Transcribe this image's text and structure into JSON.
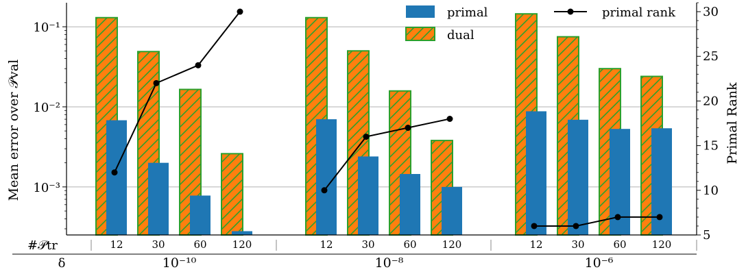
{
  "chart_data": {
    "type": "bar",
    "ylabel_left": "Mean error over 𝒫val",
    "ylabel_right": "Primal Rank",
    "y_left_scale": "log",
    "y_left_ticks": [
      "10⁻¹",
      "10⁻²",
      "10⁻³"
    ],
    "y_right_range": [
      5,
      31
    ],
    "y_right_ticks": [
      5,
      10,
      15,
      20,
      25,
      30
    ],
    "row_label_p": "#𝒫tr",
    "row_label_delta": "δ",
    "groups": [
      {
        "delta_label": "10⁻¹⁰",
        "categories": [
          "12",
          "30",
          "60",
          "120"
        ],
        "primal": [
          0.0068,
          0.002,
          0.00078,
          0.00028
        ],
        "dual": [
          0.13,
          0.049,
          0.0165,
          0.0026
        ],
        "primal_rank": [
          12,
          22,
          24,
          30
        ]
      },
      {
        "delta_label": "10⁻⁸",
        "categories": [
          "12",
          "30",
          "60",
          "120"
        ],
        "primal": [
          0.007,
          0.0024,
          0.00145,
          0.001
        ],
        "dual": [
          0.13,
          0.05,
          0.0158,
          0.0038
        ],
        "primal_rank": [
          10,
          16,
          17,
          18
        ]
      },
      {
        "delta_label": "10⁻⁶",
        "categories": [
          "12",
          "30",
          "60",
          "120"
        ],
        "primal": [
          0.0088,
          0.0069,
          0.0053,
          0.0054
        ],
        "dual": [
          0.145,
          0.075,
          0.03,
          0.024
        ],
        "primal_rank": [
          6,
          6,
          7,
          7
        ]
      }
    ],
    "series": [
      {
        "name": "primal",
        "kind": "bar",
        "color": "#1f77b4"
      },
      {
        "name": "dual",
        "kind": "bar-hatched",
        "color": "#ff7f0e",
        "edge_color": "#2ca02c"
      },
      {
        "name": "primal rank",
        "kind": "line",
        "color": "#000000"
      }
    ],
    "grid": "horizontal",
    "legend_position": "top"
  }
}
